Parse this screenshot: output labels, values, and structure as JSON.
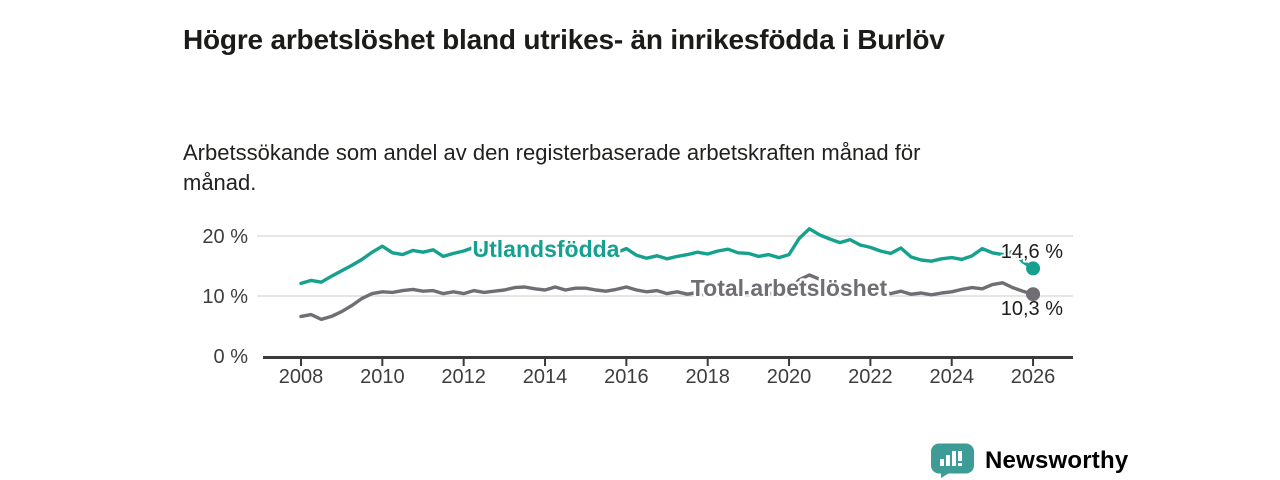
{
  "header": {
    "title": "Högre arbetslöshet bland utrikes- än inrikesfödda i Burlöv",
    "subtitle": "Arbetssökande som andel av den registerbaserade arbetskraften månad för månad."
  },
  "branding": {
    "logo_text": "Newsworthy",
    "logo_icon": "newsworthy-speech-bubble-bar-chart-icon",
    "brand_color": "#3d9c95"
  },
  "chart_data": {
    "type": "line",
    "title": "Högre arbetslöshet bland utrikes- än inrikesfödda i Burlöv",
    "subtitle": "Arbetssökande som andel av den registerbaserade arbetskraften månad för månad.",
    "xlabel": "",
    "ylabel": "",
    "grid": "horizontal",
    "legend": "inline-labels",
    "x_unit": "year",
    "x_start": 2008,
    "x_step": 0.25,
    "xlim": [
      2007.1,
      2027.0
    ],
    "ylim": [
      0,
      22.5
    ],
    "x_ticks": [
      2008,
      2010,
      2012,
      2014,
      2016,
      2018,
      2020,
      2022,
      2024,
      2026
    ],
    "y_ticks": [
      {
        "value": 0,
        "label": "0 %"
      },
      {
        "value": 10,
        "label": "10 %"
      },
      {
        "value": 20,
        "label": "20 %"
      }
    ],
    "series": [
      {
        "name": "Utlandsfödda",
        "color": "#16a18f",
        "end_label": "14,6 %",
        "end_value": 14.6,
        "values": [
          12.1,
          12.6,
          12.3,
          13.3,
          14.2,
          15.1,
          16.1,
          17.3,
          18.3,
          17.2,
          16.9,
          17.6,
          17.3,
          17.7,
          16.6,
          17.1,
          17.5,
          18.1,
          17.3,
          17.6,
          17.2,
          17.8,
          18.2,
          17.6,
          17.4,
          17.9,
          17.3,
          17.6,
          17.8,
          17.1,
          16.8,
          17.2,
          17.9,
          16.8,
          16.3,
          16.7,
          16.2,
          16.6,
          16.9,
          17.3,
          17.0,
          17.5,
          17.8,
          17.2,
          17.1,
          16.6,
          16.9,
          16.4,
          16.9,
          19.6,
          21.2,
          20.2,
          19.5,
          18.9,
          19.4,
          18.5,
          18.1,
          17.5,
          17.1,
          18.0,
          16.5,
          16.0,
          15.8,
          16.2,
          16.4,
          16.1,
          16.7,
          17.9,
          17.2,
          16.9,
          17.4,
          15.7,
          14.6
        ]
      },
      {
        "name": "Total arbetslöshet",
        "color": "#716d74",
        "end_label": "10,3 %",
        "end_value": 10.3,
        "values": [
          6.6,
          6.9,
          6.1,
          6.6,
          7.4,
          8.4,
          9.6,
          10.4,
          10.7,
          10.6,
          10.9,
          11.1,
          10.8,
          10.9,
          10.4,
          10.7,
          10.4,
          10.9,
          10.6,
          10.8,
          11.0,
          11.4,
          11.5,
          11.2,
          11.0,
          11.5,
          11.0,
          11.3,
          11.3,
          11.0,
          10.8,
          11.1,
          11.5,
          11.0,
          10.7,
          10.9,
          10.4,
          10.7,
          10.3,
          10.6,
          10.2,
          10.6,
          10.8,
          10.4,
          10.6,
          10.3,
          10.5,
          10.2,
          10.9,
          12.7,
          13.5,
          12.8,
          12.1,
          11.7,
          11.4,
          11.1,
          10.9,
          10.6,
          10.4,
          10.8,
          10.3,
          10.5,
          10.2,
          10.5,
          10.7,
          11.1,
          11.4,
          11.2,
          11.9,
          12.2,
          11.4,
          10.8,
          10.3
        ]
      }
    ]
  }
}
